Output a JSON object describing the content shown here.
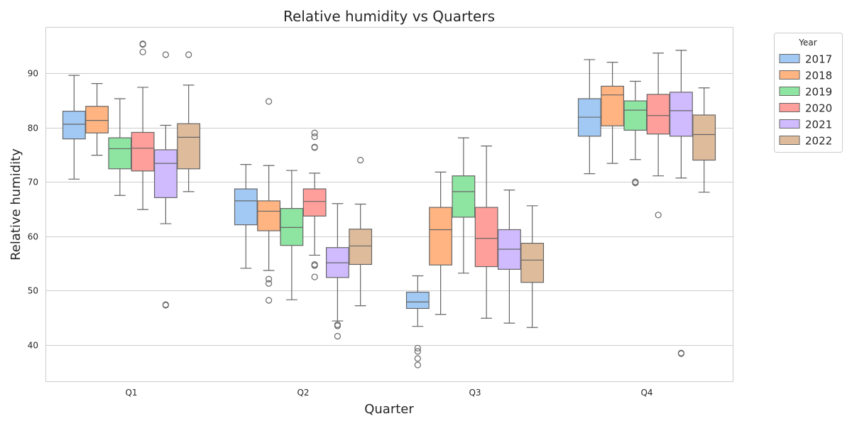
{
  "chart_data": {
    "type": "boxplot",
    "title": "Relative humidity vs Quarters",
    "xlabel": "Quarter",
    "ylabel": "Relative humidity",
    "categories": [
      "Q1",
      "Q2",
      "Q3",
      "Q4"
    ],
    "ylim": [
      33.3,
      98.5
    ],
    "yticks": [
      40,
      50,
      60,
      70,
      80,
      90
    ],
    "grid": "horizontal",
    "legend": {
      "title": "Year",
      "placement": "outside-right"
    },
    "series": [
      {
        "name": "2017",
        "color": "#a1c9f4",
        "boxes": [
          {
            "whisker_low": 70.5,
            "q1": 77.9,
            "median": 80.6,
            "q3": 83.0,
            "whisker_high": 89.6,
            "outliers": []
          },
          {
            "whisker_low": 54.1,
            "q1": 62.1,
            "median": 66.5,
            "q3": 68.7,
            "whisker_high": 73.2,
            "outliers": []
          },
          {
            "whisker_low": 43.4,
            "q1": 46.7,
            "median": 47.9,
            "q3": 49.7,
            "whisker_high": 52.7,
            "outliers": [
              39.4,
              38.8,
              37.5,
              36.3
            ]
          },
          {
            "whisker_low": 71.5,
            "q1": 78.4,
            "median": 81.9,
            "q3": 85.3,
            "whisker_high": 92.5,
            "outliers": []
          }
        ]
      },
      {
        "name": "2018",
        "color": "#ffb482",
        "boxes": [
          {
            "whisker_low": 74.9,
            "q1": 79.0,
            "median": 81.3,
            "q3": 83.9,
            "whisker_high": 88.1,
            "outliers": []
          },
          {
            "whisker_low": 53.7,
            "q1": 61.0,
            "median": 64.6,
            "q3": 66.5,
            "whisker_high": 73.0,
            "outliers": [
              84.8,
              52.1,
              51.3,
              48.2
            ]
          },
          {
            "whisker_low": 45.6,
            "q1": 54.7,
            "median": 61.2,
            "q3": 65.3,
            "whisker_high": 71.8,
            "outliers": []
          },
          {
            "whisker_low": 73.4,
            "q1": 80.3,
            "median": 86.0,
            "q3": 87.6,
            "whisker_high": 92.0,
            "outliers": []
          }
        ]
      },
      {
        "name": "2019",
        "color": "#8de5a1",
        "boxes": [
          {
            "whisker_low": 67.5,
            "q1": 72.4,
            "median": 76.1,
            "q3": 78.1,
            "whisker_high": 85.3,
            "outliers": []
          },
          {
            "whisker_low": 48.3,
            "q1": 58.3,
            "median": 61.6,
            "q3": 65.1,
            "whisker_high": 72.1,
            "outliers": []
          },
          {
            "whisker_low": 53.2,
            "q1": 63.5,
            "median": 68.2,
            "q3": 71.1,
            "whisker_high": 78.1,
            "outliers": []
          },
          {
            "whisker_low": 74.1,
            "q1": 79.5,
            "median": 83.2,
            "q3": 84.9,
            "whisker_high": 88.5,
            "outliers": [
              70.0,
              69.8
            ]
          }
        ]
      },
      {
        "name": "2020",
        "color": "#ff9f9b",
        "boxes": [
          {
            "whisker_low": 64.9,
            "q1": 72.0,
            "median": 76.2,
            "q3": 79.1,
            "whisker_high": 87.4,
            "outliers": [
              95.4,
              93.9,
              95.3
            ]
          },
          {
            "whisker_low": 56.5,
            "q1": 63.7,
            "median": 66.4,
            "q3": 68.7,
            "whisker_high": 71.6,
            "outliers": [
              79.0,
              78.3,
              76.4,
              76.3,
              54.8,
              54.6,
              52.5
            ]
          },
          {
            "whisker_low": 44.9,
            "q1": 54.4,
            "median": 59.6,
            "q3": 65.3,
            "whisker_high": 76.6,
            "outliers": []
          },
          {
            "whisker_low": 71.1,
            "q1": 78.8,
            "median": 82.2,
            "q3": 86.1,
            "whisker_high": 93.7,
            "outliers": [
              63.9
            ]
          }
        ]
      },
      {
        "name": "2021",
        "color": "#d0bbff",
        "boxes": [
          {
            "whisker_low": 62.3,
            "q1": 67.1,
            "median": 73.4,
            "q3": 75.9,
            "whisker_high": 80.4,
            "outliers": [
              93.4,
              47.4,
              47.3
            ]
          },
          {
            "whisker_low": 44.4,
            "q1": 52.4,
            "median": 55.1,
            "q3": 57.9,
            "whisker_high": 66.0,
            "outliers": [
              43.7,
              43.5,
              41.6
            ]
          },
          {
            "whisker_low": 44.0,
            "q1": 53.9,
            "median": 57.6,
            "q3": 61.2,
            "whisker_high": 68.5,
            "outliers": []
          },
          {
            "whisker_low": 70.7,
            "q1": 78.4,
            "median": 83.1,
            "q3": 86.5,
            "whisker_high": 94.2,
            "outliers": [
              38.5,
              38.4
            ]
          }
        ]
      },
      {
        "name": "2022",
        "color": "#debb9b",
        "boxes": [
          {
            "whisker_low": 68.2,
            "q1": 72.4,
            "median": 78.2,
            "q3": 80.7,
            "whisker_high": 87.8,
            "outliers": [
              93.4
            ]
          },
          {
            "whisker_low": 47.2,
            "q1": 54.8,
            "median": 58.2,
            "q3": 61.3,
            "whisker_high": 65.9,
            "outliers": [
              74.0
            ]
          },
          {
            "whisker_low": 43.2,
            "q1": 51.5,
            "median": 55.6,
            "q3": 58.7,
            "whisker_high": 65.6,
            "outliers": []
          },
          {
            "whisker_low": 68.1,
            "q1": 74.0,
            "median": 78.7,
            "q3": 82.3,
            "whisker_high": 87.3,
            "outliers": []
          }
        ]
      }
    ]
  }
}
